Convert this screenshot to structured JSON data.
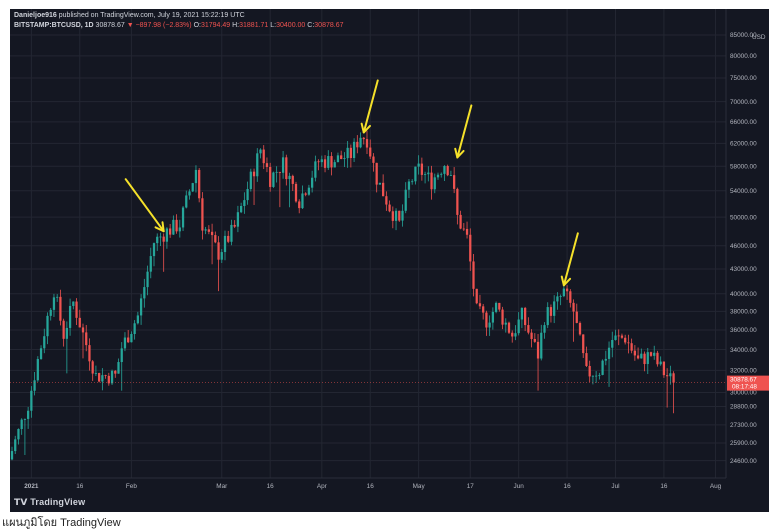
{
  "header": {
    "publisher": "Danieljoe916",
    "published_text": "published on TradingView.com, July 19, 2021 15:22:19 UTC",
    "symbol": "BITSTAMP:BTCUSD, 1D",
    "last": "30878.67",
    "change": "▼ −897.98 (−2.83%)",
    "open_label": "O:",
    "open": "31794.49",
    "high_label": "H:",
    "high": "31881.71",
    "low_label": "L:",
    "low": "30400.00",
    "close_label": "C:",
    "close": "30878.67"
  },
  "branding": {
    "logo_text": "TradingView"
  },
  "footer": {
    "caption": "แผนภูมิโดย TradingView"
  },
  "colors": {
    "up": "#26a69a",
    "down": "#ef5350",
    "arrow": "#f5e12a",
    "background": "#141722",
    "grid": "#232632"
  },
  "price_badge": {
    "price": "30878.67",
    "time": "08:17:48"
  },
  "chart_data": {
    "type": "candlestick",
    "y_unit": "USD",
    "y_scale": "log",
    "ylim": [
      23800,
      86000
    ],
    "y_ticks": [
      85000,
      80000,
      75000,
      70000,
      66000,
      62000,
      58000,
      54000,
      50000,
      46000,
      43000,
      40000,
      38000,
      36000,
      34000,
      32000,
      30000,
      28800,
      27300,
      25900,
      24600
    ],
    "y_tick_labels": [
      "85000.00",
      "80000.00",
      "75000.00",
      "70000.00",
      "66000.00",
      "62000.00",
      "58000.00",
      "54000.00",
      "50000.00",
      "46000.00",
      "43000.00",
      "40000.00",
      "38000.00",
      "36000.00",
      "34000.00",
      "32000.00",
      "30000.00",
      "28800.00",
      "27300.00",
      "25900.00",
      "24600.00"
    ],
    "x_ticks": [
      {
        "label": "2021",
        "date": "2021-01-01",
        "bold": true
      },
      {
        "label": "16",
        "date": "2021-01-16"
      },
      {
        "label": "Feb",
        "date": "2021-02-01"
      },
      {
        "label": "Mar",
        "date": "2021-03-01"
      },
      {
        "label": "16",
        "date": "2021-03-16"
      },
      {
        "label": "Apr",
        "date": "2021-04-01"
      },
      {
        "label": "16",
        "date": "2021-04-16"
      },
      {
        "label": "May",
        "date": "2021-05-01"
      },
      {
        "label": "17",
        "date": "2021-05-17"
      },
      {
        "label": "Jun",
        "date": "2021-06-01"
      },
      {
        "label": "16",
        "date": "2021-06-16"
      },
      {
        "label": "Jul",
        "date": "2021-07-01"
      },
      {
        "label": "16",
        "date": "2021-07-16"
      },
      {
        "label": "Aug",
        "date": "2021-08-01"
      }
    ],
    "close_path": [
      [
        "2020-12-25",
        24700
      ],
      [
        "2020-12-31",
        29000
      ],
      [
        "2021-01-03",
        33000
      ],
      [
        "2021-01-08",
        40500
      ],
      [
        "2021-01-11",
        35500
      ],
      [
        "2021-01-14",
        39000
      ],
      [
        "2021-01-21",
        31500
      ],
      [
        "2021-01-27",
        31500
      ],
      [
        "2021-01-29",
        34200
      ],
      [
        "2021-02-03",
        37500
      ],
      [
        "2021-02-08",
        46500
      ],
      [
        "2021-02-12",
        48000
      ],
      [
        "2021-02-16",
        49000
      ],
      [
        "2021-02-21",
        57500
      ],
      [
        "2021-02-23",
        49000
      ],
      [
        "2021-02-28",
        45000
      ],
      [
        "2021-03-05",
        48500
      ],
      [
        "2021-03-10",
        56000
      ],
      [
        "2021-03-13",
        61000
      ],
      [
        "2021-03-16",
        56000
      ],
      [
        "2021-03-20",
        58500
      ],
      [
        "2021-03-25",
        52500
      ],
      [
        "2021-03-31",
        58800
      ],
      [
        "2021-04-05",
        59000
      ],
      [
        "2021-04-10",
        60000
      ],
      [
        "2021-04-13",
        63500
      ],
      [
        "2021-04-15",
        62800
      ],
      [
        "2021-04-18",
        56000
      ],
      [
        "2021-04-22",
        51500
      ],
      [
        "2021-04-25",
        49000
      ],
      [
        "2021-04-28",
        55000
      ],
      [
        "2021-05-01",
        57500
      ],
      [
        "2021-05-05",
        55500
      ],
      [
        "2021-05-09",
        58500
      ],
      [
        "2021-05-11",
        57000
      ],
      [
        "2021-05-13",
        50000
      ],
      [
        "2021-05-16",
        47000
      ],
      [
        "2021-05-19",
        38000
      ],
      [
        "2021-05-22",
        37000
      ],
      [
        "2021-05-25",
        38500
      ],
      [
        "2021-05-30",
        35500
      ],
      [
        "2021-06-02",
        37500
      ],
      [
        "2021-06-07",
        33500
      ],
      [
        "2021-06-09",
        37400
      ],
      [
        "2021-06-13",
        39000
      ],
      [
        "2021-06-15",
        40200
      ],
      [
        "2021-06-18",
        38000
      ],
      [
        "2021-06-22",
        31700
      ],
      [
        "2021-06-26",
        32000
      ],
      [
        "2021-06-30",
        35000
      ],
      [
        "2021-07-04",
        35200
      ],
      [
        "2021-07-08",
        32900
      ],
      [
        "2021-07-12",
        33500
      ],
      [
        "2021-07-16",
        31800
      ],
      [
        "2021-07-19",
        30878.67
      ]
    ],
    "last_price": 30878.67,
    "annotations": [
      {
        "type": "arrow",
        "date": "2021-02-11",
        "price": 48000
      },
      {
        "type": "arrow",
        "date": "2021-04-14",
        "price": 64000
      },
      {
        "type": "arrow",
        "date": "2021-05-13",
        "price": 59500
      },
      {
        "type": "arrow",
        "date": "2021-06-15",
        "price": 41000
      }
    ]
  }
}
